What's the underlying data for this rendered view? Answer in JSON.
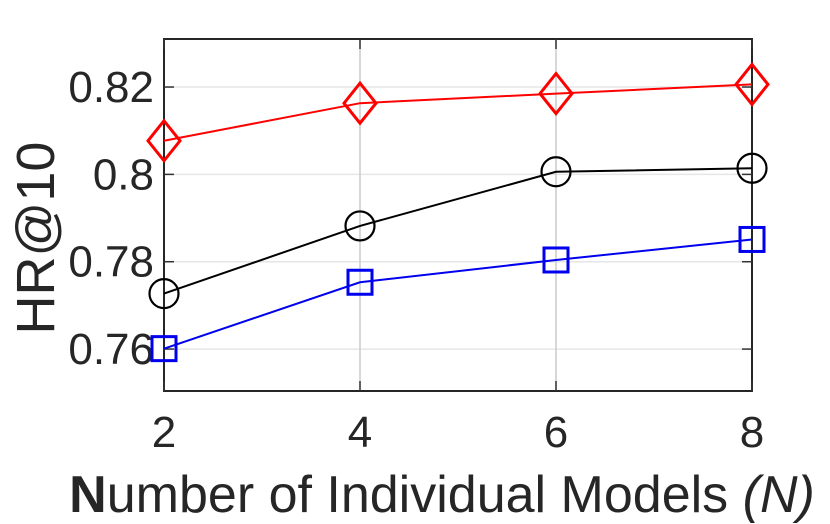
{
  "chart_data": {
    "type": "line",
    "title": "",
    "ylabel": "HR@10",
    "xlabel_bold_prefix": "N",
    "xlabel_main": "umber of Individual Models ",
    "xlabel_italic_suffix": "(N)",
    "x": [
      2,
      4,
      6,
      8
    ],
    "xtick_labels": [
      "2",
      "4",
      "6",
      "8"
    ],
    "yticks": [
      0.76,
      0.78,
      0.8,
      0.82
    ],
    "ytick_labels": [
      "0.76",
      "0.78",
      "0.8",
      "0.82"
    ],
    "xlim": [
      2,
      8
    ],
    "ylim": [
      0.7504,
      0.831
    ],
    "grid": true,
    "legend_position": "none",
    "series": [
      {
        "name": "blue-square-series",
        "marker": "square",
        "color": "#0000EE",
        "values": [
          0.7601,
          0.7753,
          0.7804,
          0.7851
        ]
      },
      {
        "name": "black-circle-series",
        "marker": "circle",
        "color": "#000000",
        "values": [
          0.7727,
          0.7882,
          0.8006,
          0.8014
        ]
      },
      {
        "name": "red-diamond-series",
        "marker": "diamond",
        "color": "#FF0000",
        "values": [
          0.8077,
          0.8163,
          0.8185,
          0.8206
        ]
      }
    ]
  },
  "colors": {
    "axis": "#262626",
    "tick": "#333333",
    "grid_horizontal": "#e6e6e6",
    "grid_vertical": "#cccccc",
    "text": "#262626",
    "background": "#ffffff"
  }
}
